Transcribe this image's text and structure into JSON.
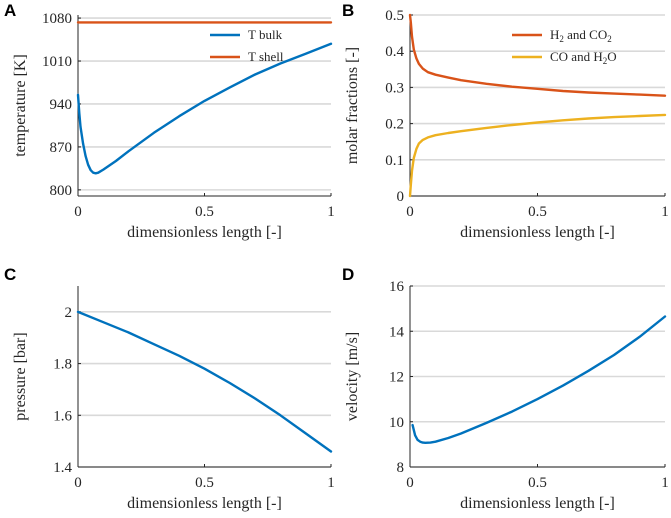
{
  "colors": {
    "blue": "#0072BD",
    "orange": "#D95319",
    "yellow": "#EDB120"
  },
  "chart_data": [
    {
      "type": "line",
      "panel": "A",
      "xlabel": "dimensionless length [-]",
      "ylabel": "temperature [K]",
      "xlim": [
        0,
        1
      ],
      "ylim": [
        790,
        1085
      ],
      "xticks": [
        0,
        0.5,
        1
      ],
      "xtick_labels": [
        "0",
        "0.5",
        "1"
      ],
      "yticks": [
        800,
        870,
        940,
        1010,
        1080
      ],
      "ytick_labels": [
        "800",
        "870",
        "940",
        "1010",
        "1080"
      ],
      "legend_position": "top-right",
      "series": [
        {
          "name": "T bulk",
          "color_key": "blue",
          "x": [
            0,
            0.005,
            0.01,
            0.02,
            0.03,
            0.04,
            0.05,
            0.06,
            0.07,
            0.08,
            0.1,
            0.15,
            0.2,
            0.3,
            0.4,
            0.5,
            0.6,
            0.7,
            0.8,
            0.9,
            1.0
          ],
          "y": [
            955,
            925,
            903,
            875,
            855,
            841,
            832,
            828,
            827,
            828,
            833,
            847,
            863,
            893,
            920,
            945,
            967,
            988,
            1006,
            1022,
            1038
          ]
        },
        {
          "name": "T shell",
          "color_key": "orange",
          "x": [
            0,
            1
          ],
          "y": [
            1073,
            1073
          ]
        }
      ]
    },
    {
      "type": "line",
      "panel": "B",
      "xlabel": "dimensionless length [-]",
      "ylabel": "molar fractions [-]",
      "xlim": [
        0,
        1
      ],
      "ylim": [
        0,
        0.5
      ],
      "xticks": [
        0,
        0.5,
        1
      ],
      "xtick_labels": [
        "0",
        "0.5",
        "1"
      ],
      "yticks": [
        0,
        0.1,
        0.2,
        0.3,
        0.4,
        0.5
      ],
      "ytick_labels": [
        "0",
        "0.1",
        "0.2",
        "0.3",
        "0.4",
        "0.5"
      ],
      "legend_position": "top-right",
      "series": [
        {
          "name": "H2 and CO2",
          "legend_parts": [
            [
              "H",
              "2",
              " and CO",
              "2"
            ]
          ],
          "color_key": "orange",
          "x": [
            0,
            0.003,
            0.008,
            0.015,
            0.025,
            0.035,
            0.05,
            0.07,
            0.1,
            0.15,
            0.2,
            0.3,
            0.4,
            0.5,
            0.6,
            0.7,
            0.8,
            0.9,
            1.0
          ],
          "y": [
            0.5,
            0.48,
            0.44,
            0.405,
            0.38,
            0.365,
            0.352,
            0.342,
            0.335,
            0.327,
            0.32,
            0.31,
            0.302,
            0.296,
            0.29,
            0.286,
            0.283,
            0.28,
            0.277
          ]
        },
        {
          "name": "CO and H2O",
          "legend_parts": [
            [
              "CO and H",
              "2",
              "O",
              ""
            ]
          ],
          "color_key": "yellow",
          "x": [
            0,
            0.003,
            0.008,
            0.015,
            0.025,
            0.035,
            0.05,
            0.07,
            0.1,
            0.15,
            0.2,
            0.3,
            0.4,
            0.5,
            0.6,
            0.7,
            0.8,
            0.9,
            1.0
          ],
          "y": [
            0,
            0.03,
            0.07,
            0.105,
            0.13,
            0.145,
            0.155,
            0.162,
            0.168,
            0.174,
            0.179,
            0.188,
            0.196,
            0.203,
            0.209,
            0.214,
            0.218,
            0.221,
            0.224
          ]
        }
      ]
    },
    {
      "type": "line",
      "panel": "C",
      "xlabel": "dimensionless length [-]",
      "ylabel": "pressure [bar]",
      "xlim": [
        0,
        1
      ],
      "ylim": [
        1.4,
        2.1
      ],
      "xticks": [
        0,
        0.5,
        1
      ],
      "xtick_labels": [
        "0",
        "0.5",
        "1"
      ],
      "yticks": [
        1.4,
        1.6,
        1.8,
        2
      ],
      "ytick_labels": [
        "1.4",
        "1.6",
        "1.8",
        "2"
      ],
      "series": [
        {
          "name": "pressure",
          "color_key": "blue",
          "x": [
            0,
            0.1,
            0.2,
            0.3,
            0.4,
            0.5,
            0.6,
            0.7,
            0.8,
            0.9,
            1.0
          ],
          "y": [
            2.0,
            1.96,
            1.92,
            1.875,
            1.83,
            1.78,
            1.725,
            1.665,
            1.6,
            1.53,
            1.46
          ]
        }
      ]
    },
    {
      "type": "line",
      "panel": "D",
      "xlabel": "dimensionless length [-]",
      "ylabel": "velocity [m/s]",
      "xlim": [
        0,
        1
      ],
      "ylim": [
        8,
        16
      ],
      "xticks": [
        0,
        0.5,
        1
      ],
      "xtick_labels": [
        "0",
        "0.5",
        "1"
      ],
      "yticks": [
        8,
        10,
        12,
        14,
        16
      ],
      "ytick_labels": [
        "8",
        "10",
        "12",
        "14",
        "16"
      ],
      "series": [
        {
          "name": "velocity",
          "color_key": "blue",
          "x": [
            0.01,
            0.02,
            0.03,
            0.04,
            0.05,
            0.06,
            0.08,
            0.1,
            0.15,
            0.2,
            0.3,
            0.4,
            0.5,
            0.6,
            0.7,
            0.8,
            0.9,
            1.0
          ],
          "y": [
            9.85,
            9.4,
            9.2,
            9.12,
            9.08,
            9.07,
            9.08,
            9.12,
            9.28,
            9.48,
            9.95,
            10.45,
            11.0,
            11.6,
            12.25,
            12.95,
            13.75,
            14.65
          ]
        }
      ]
    }
  ]
}
